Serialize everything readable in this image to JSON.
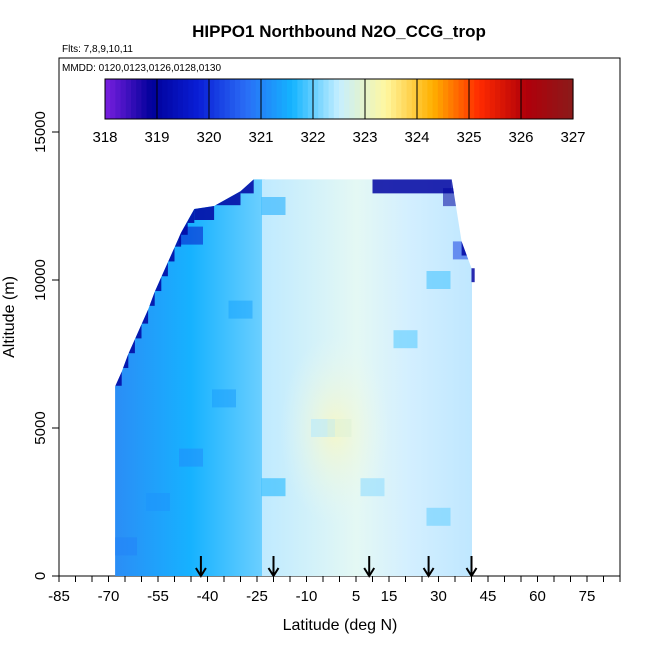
{
  "chart_data": {
    "type": "heatmap",
    "title": "HIPPO1 Northbound N2O_CCG_trop",
    "annotations": [
      "Flts: 7,8,9,10,11",
      "MMDD: 0120,0123,0126,0128,0130"
    ],
    "xlabel": "Latitude (deg N)",
    "ylabel": "Altitude (m)",
    "xlim": [
      -85,
      85
    ],
    "ylim": [
      0,
      17500
    ],
    "x_ticks": [
      -85,
      -70,
      -55,
      -40,
      -25,
      -10,
      5,
      15,
      30,
      45,
      60,
      75
    ],
    "y_ticks": [
      0,
      5000,
      10000,
      15000
    ],
    "grid": false,
    "colorbar": {
      "placement": "top",
      "min": 318,
      "max": 327,
      "ticks": [
        318,
        319,
        320,
        321,
        322,
        323,
        324,
        325,
        326,
        327
      ],
      "colors": [
        "#7a1fe0",
        "#00009a",
        "#0a1fd6",
        "#2a6cf5",
        "#14b4ff",
        "#c6efff",
        "#fff7a0",
        "#ffb000",
        "#ff2a00",
        "#b0000a",
        "#8b1a1a"
      ]
    },
    "flight_markers_lat": [
      -42,
      -20,
      9,
      27,
      40
    ],
    "envelope": [
      {
        "lat": -68,
        "alt_max": 6400
      },
      {
        "lat": -66,
        "alt_max": 6900
      },
      {
        "lat": -64,
        "alt_max": 7500
      },
      {
        "lat": -62,
        "alt_max": 8000
      },
      {
        "lat": -60,
        "alt_max": 8500
      },
      {
        "lat": -58,
        "alt_max": 9000
      },
      {
        "lat": -56,
        "alt_max": 9600
      },
      {
        "lat": -54,
        "alt_max": 10100
      },
      {
        "lat": -52,
        "alt_max": 10600
      },
      {
        "lat": -50,
        "alt_max": 11100
      },
      {
        "lat": -48,
        "alt_max": 11600
      },
      {
        "lat": -46,
        "alt_max": 12000
      },
      {
        "lat": -44,
        "alt_max": 12400
      },
      {
        "lat": -38,
        "alt_max": 12500
      },
      {
        "lat": -30,
        "alt_max": 13000
      },
      {
        "lat": -26,
        "alt_max": 13400
      },
      {
        "lat": 10,
        "alt_max": 13400
      },
      {
        "lat": 34,
        "alt_max": 13400
      },
      {
        "lat": 37,
        "alt_max": 11300
      },
      {
        "lat": 40,
        "alt_max": 10400
      },
      {
        "lat": 41,
        "alt_max": 10400
      }
    ],
    "field_samples": [
      {
        "lat": -65,
        "alt": 1000,
        "value": 321.0
      },
      {
        "lat": -55,
        "alt": 2500,
        "value": 321.2
      },
      {
        "lat": -45,
        "alt": 4000,
        "value": 321.1
      },
      {
        "lat": -35,
        "alt": 6000,
        "value": 321.3
      },
      {
        "lat": -30,
        "alt": 9000,
        "value": 321.4
      },
      {
        "lat": -45,
        "alt": 11500,
        "value": 319.6
      },
      {
        "lat": -20,
        "alt": 12500,
        "value": 321.5
      },
      {
        "lat": -20,
        "alt": 3000,
        "value": 321.6
      },
      {
        "lat": -5,
        "alt": 5000,
        "value": 322.4
      },
      {
        "lat": 0,
        "alt": 5000,
        "value": 322.9
      },
      {
        "lat": 10,
        "alt": 3000,
        "value": 322.2
      },
      {
        "lat": 20,
        "alt": 8000,
        "value": 321.9
      },
      {
        "lat": 30,
        "alt": 10000,
        "value": 321.8
      },
      {
        "lat": 30,
        "alt": 2000,
        "value": 322.0
      },
      {
        "lat": 35,
        "alt": 12800,
        "value": 319.0
      },
      {
        "lat": 38,
        "alt": 11000,
        "value": 320.2
      }
    ]
  }
}
